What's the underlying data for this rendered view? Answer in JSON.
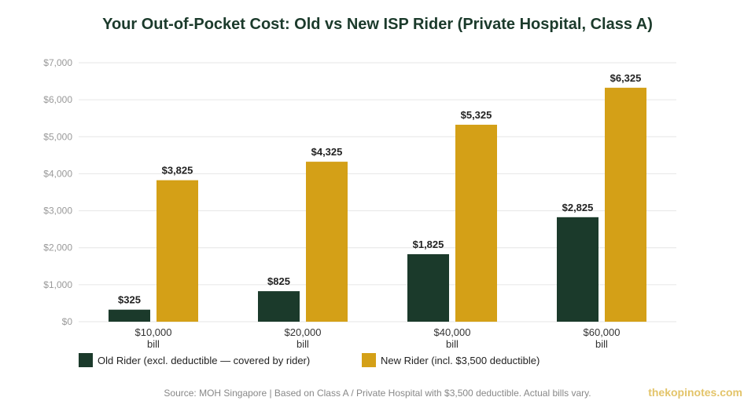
{
  "chart_data": {
    "type": "bar",
    "title": "Your Out-of-Pocket Cost: Old vs New ISP Rider (Private Hospital, Class A)",
    "categories": [
      [
        "$10,000",
        "bill"
      ],
      [
        "$20,000",
        "bill"
      ],
      [
        "$40,000",
        "bill"
      ],
      [
        "$60,000",
        "bill"
      ]
    ],
    "series": [
      {
        "name": "Old Rider (excl. deductible — covered by rider)",
        "values": [
          325,
          825,
          1825,
          2825
        ],
        "labels": [
          "$325",
          "$825",
          "$1,825",
          "$2,825"
        ],
        "color": "#1b3a2b"
      },
      {
        "name": "New Rider (incl. $3,500 deductible)",
        "values": [
          3825,
          4325,
          5325,
          6325
        ],
        "labels": [
          "$3,825",
          "$4,325",
          "$5,325",
          "$6,325"
        ],
        "color": "#d4a017"
      }
    ],
    "ylim": [
      0,
      7000
    ],
    "yticks": [
      0,
      1000,
      2000,
      3000,
      4000,
      5000,
      6000,
      7000
    ],
    "ytick_labels": [
      "$0",
      "$1,000",
      "$2,000",
      "$3,000",
      "$4,000",
      "$5,000",
      "$6,000",
      "$7,000"
    ],
    "grid": true,
    "legend": "bottom-left"
  },
  "footer": {
    "source": "Source: MOH Singapore | Based on Class A / Private Hospital with $3,500 deductible. Actual bills vary.",
    "watermark": "thekopinotes.com"
  }
}
